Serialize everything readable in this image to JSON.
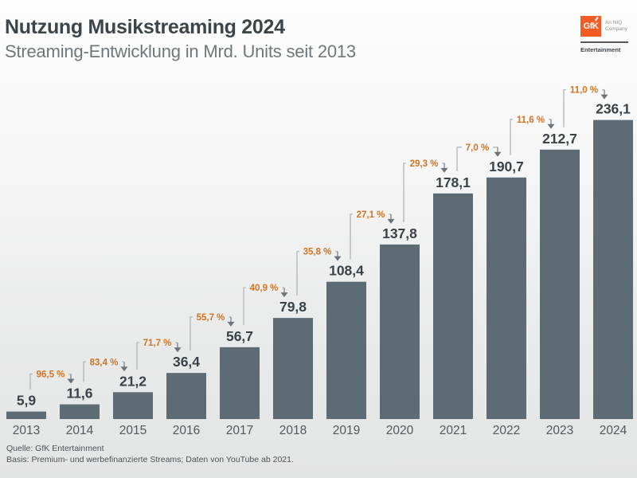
{
  "header": {
    "title": "Nutzung Musikstreaming 2024",
    "subtitle": "Streaming-Entwicklung in Mrd. Units seit 2013"
  },
  "logo": {
    "brand": "GfK",
    "tagline_line1": "An NIQ",
    "tagline_line2": "Company",
    "division": "Entertainment",
    "brand_color": "#f05c23"
  },
  "chart_data": {
    "type": "bar",
    "title": "Nutzung Musikstreaming 2024",
    "subtitle": "Streaming-Entwicklung in Mrd. Units seit 2013",
    "unit": "Mrd. Units",
    "categories": [
      "2013",
      "2014",
      "2015",
      "2016",
      "2017",
      "2018",
      "2019",
      "2020",
      "2021",
      "2022",
      "2023",
      "2024"
    ],
    "values": [
      5.9,
      11.6,
      21.2,
      36.4,
      56.7,
      79.8,
      108.4,
      137.8,
      178.1,
      190.7,
      212.7,
      236.1
    ],
    "value_labels": [
      "5,9",
      "11,6",
      "21,2",
      "36,4",
      "56,7",
      "79,8",
      "108,4",
      "137,8",
      "178,1",
      "190,7",
      "212,7",
      "236,1"
    ],
    "growth_pct": [
      96.5,
      83.4,
      71.7,
      55.7,
      40.9,
      35.8,
      27.1,
      29.3,
      7.0,
      11.6,
      11.0
    ],
    "growth_labels": [
      "96,5 %",
      "83,4 %",
      "71,7 %",
      "55,7 %",
      "40,9 %",
      "35,8 %",
      "27,1 %",
      "29,3 %",
      "7,0 %",
      "11,6 %",
      "11,0 %"
    ],
    "ylim": [
      0,
      250
    ],
    "grid": false,
    "legend": false,
    "colors": {
      "bar": "#5d6b74",
      "value_label": "#3b4247",
      "axis_label": "#53585c",
      "growth_label": "#d4731f",
      "bracket_line": "#b9bcbe",
      "arrow": "#6e747a"
    }
  },
  "footer": {
    "line1": "Quelle: GfK Entertainment",
    "line2": "Basis: Premium- und werbefinanzierte Streams; Daten von YouTube ab 2021."
  }
}
